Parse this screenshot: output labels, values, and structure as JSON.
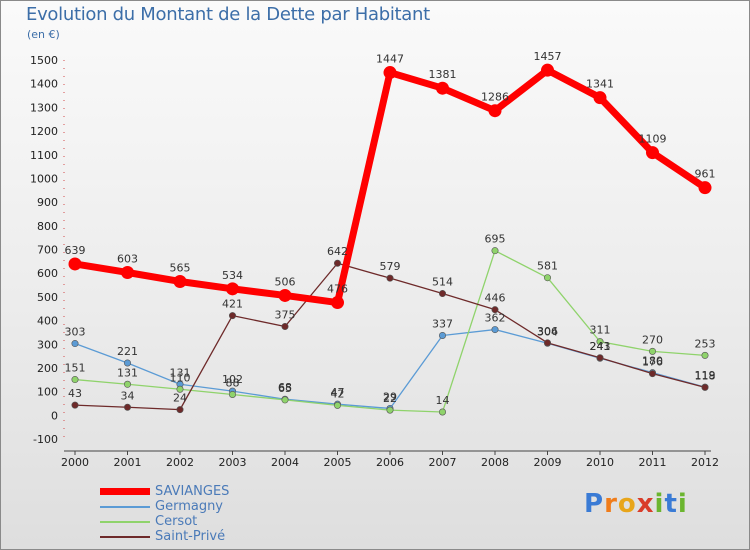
{
  "title": "Evolution du Montant de la Dette par Habitant",
  "subtitle": "(en €)",
  "logo": {
    "letters": [
      "P",
      "r",
      "o",
      "x",
      "i",
      "t",
      "i"
    ],
    "colors": [
      "#3a7bd5",
      "#f07c1a",
      "#e8a51a",
      "#d93d2a",
      "#6bb52f",
      "#3a7bd5",
      "#6bb52f"
    ]
  },
  "chart_data": {
    "type": "line",
    "x": [
      "2000",
      "2001",
      "2002",
      "2003",
      "2004",
      "2005",
      "2006",
      "2007",
      "2008",
      "2009",
      "2010",
      "2011",
      "2012"
    ],
    "ylim": [
      -100,
      1500
    ],
    "yticks": [
      -100,
      0,
      100,
      200,
      300,
      400,
      500,
      600,
      700,
      800,
      900,
      1000,
      1100,
      1200,
      1300,
      1400,
      1500
    ],
    "grid": false,
    "legend_position": "bottom-left",
    "series": [
      {
        "name": "SAVIANGES",
        "color": "#ff0000",
        "values": [
          639,
          603,
          565,
          534,
          506,
          476,
          1447,
          1381,
          1286,
          1457,
          1341,
          1109,
          961
        ],
        "labels": [
          "639",
          "603",
          "565",
          "534",
          "506",
          "476",
          "1447",
          "1381",
          "1286",
          "1457",
          "1341",
          "1109",
          "961"
        ]
      },
      {
        "name": "Germagny",
        "color": "#5b9bd5",
        "values": [
          303,
          221,
          131,
          102,
          68,
          47,
          29,
          337,
          362,
          304,
          241,
          180,
          119
        ],
        "labels": [
          "303",
          "221",
          "131",
          "102",
          "68",
          "47",
          "29",
          "337",
          "362",
          "304",
          "241",
          "180",
          "119"
        ]
      },
      {
        "name": "Cersot",
        "color": "#8fd36b",
        "values": [
          151,
          131,
          110,
          88,
          65,
          42,
          22,
          14,
          695,
          581,
          311,
          270,
          253
        ],
        "labels": [
          "151",
          "131",
          "110",
          "88",
          "65",
          "42",
          "22",
          "14",
          "695",
          "581",
          "311",
          "270",
          "253"
        ]
      },
      {
        "name": "Saint-Privé",
        "color": "#6e2a2a",
        "values": [
          43,
          34,
          24,
          421,
          375,
          642,
          579,
          514,
          446,
          306,
          243,
          176,
          118
        ],
        "labels": [
          "43",
          "34",
          "24",
          "421",
          "375",
          "642",
          "579",
          "514",
          "446",
          "306",
          "243",
          "176",
          "118"
        ]
      }
    ]
  }
}
